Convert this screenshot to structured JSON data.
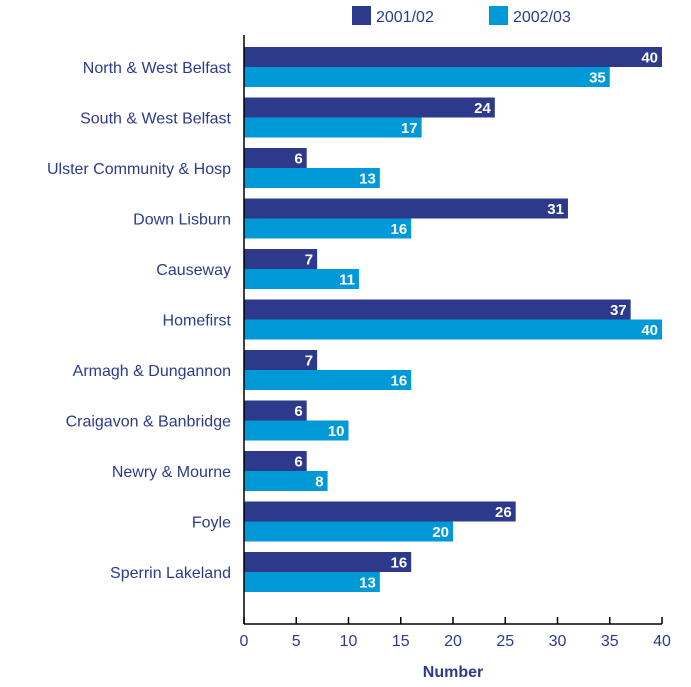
{
  "chart_data": {
    "type": "bar",
    "orientation": "horizontal",
    "categories": [
      "North & West Belfast",
      "South & West Belfast",
      "Ulster Community & Hosp",
      "Down Lisburn",
      "Causeway",
      "Homefirst",
      "Armagh & Dungannon",
      "Craigavon & Banbridge",
      "Newry & Mourne",
      "Foyle",
      "Sperrin Lakeland"
    ],
    "series": [
      {
        "name": "2001/02",
        "color": "#2d3a8c",
        "values": [
          40,
          24,
          6,
          31,
          7,
          37,
          7,
          6,
          6,
          26,
          16
        ]
      },
      {
        "name": "2002/03",
        "color": "#0099d8",
        "values": [
          35,
          17,
          13,
          16,
          11,
          40,
          16,
          10,
          8,
          20,
          13
        ]
      }
    ],
    "xlabel": "Number",
    "ylabel": "",
    "xlim": [
      0,
      40
    ],
    "xticks": [
      "0",
      "5",
      "10",
      "15",
      "20",
      "25",
      "30",
      "35",
      "40"
    ],
    "grid": false,
    "legend": "top-right",
    "data_labels": true
  }
}
